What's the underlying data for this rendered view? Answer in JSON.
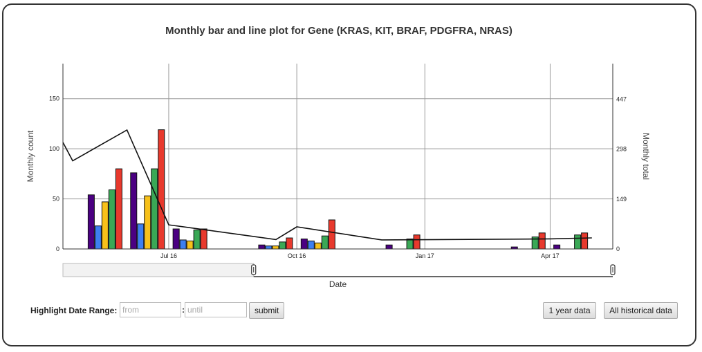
{
  "title": "Monthly bar and line plot for Gene (KRAS, KIT, BRAF, PDGFRA, NRAS)",
  "controls": {
    "highlight_label": "Highlight Date Range:",
    "from_placeholder": "from",
    "until_placeholder": "until",
    "colon": ":",
    "submit_label": "submit",
    "one_year_label": "1 year data",
    "all_data_label": "All historical data"
  },
  "chart_data": {
    "type": "bar",
    "xlabel": "Date",
    "ylabel": "Monthly count",
    "y2label": "Monthly total",
    "ylim": [
      0,
      185
    ],
    "y2lim": [
      0,
      553
    ],
    "yticks": [
      0,
      50,
      100,
      150
    ],
    "y2ticks": [
      0,
      149,
      298,
      447
    ],
    "xlim": [
      "2016-04-16",
      "2017-05-16"
    ],
    "xticks": [
      {
        "date": "2016-07-01",
        "label": "Jul 16"
      },
      {
        "date": "2016-10-01",
        "label": "Oct 16"
      },
      {
        "date": "2017-01-01",
        "label": "Jan 17"
      },
      {
        "date": "2017-04-01",
        "label": "Apr 17"
      }
    ],
    "grid": true,
    "colors": [
      "#4b0082",
      "#3d7ff0",
      "#f7c11a",
      "#3aa856",
      "#e8392d"
    ],
    "months": [
      "2016-05",
      "2016-06",
      "2016-07",
      "2016-09",
      "2016-10",
      "2016-12",
      "2017-03",
      "2017-04"
    ],
    "series": [
      {
        "values": [
          54,
          76,
          20,
          4,
          10,
          4,
          2,
          4
        ]
      },
      {
        "values": [
          23,
          25,
          9,
          3,
          8,
          0,
          0,
          0
        ]
      },
      {
        "values": [
          47,
          53,
          8,
          3,
          6,
          0,
          0,
          0
        ]
      },
      {
        "values": [
          59,
          80,
          19,
          7,
          13,
          10,
          12,
          14
        ]
      },
      {
        "values": [
          80,
          119,
          20,
          11,
          29,
          14,
          16,
          16
        ]
      }
    ],
    "line": {
      "x": [
        "2016-04-16",
        "2016-04-23",
        "2016-06-01",
        "2016-07-01",
        "2016-09-16",
        "2016-10-01",
        "2016-12-01",
        "2017-04-01",
        "2017-05-01"
      ],
      "y": [
        318,
        263,
        355,
        72,
        28,
        66,
        27,
        30,
        33
      ]
    },
    "range_selector": {
      "from": "2016-04-16",
      "to": "2016-08-31"
    }
  }
}
